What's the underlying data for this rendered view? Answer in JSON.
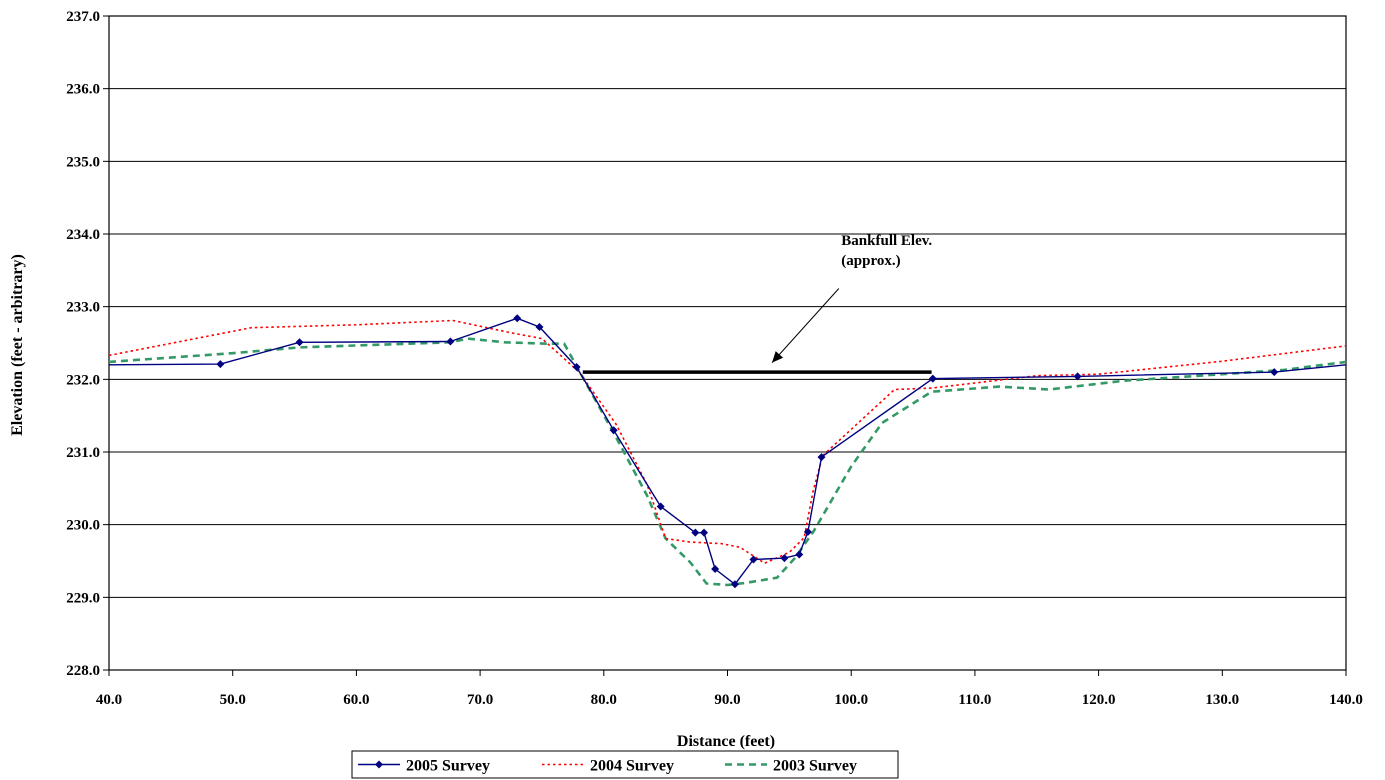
{
  "chart_data": {
    "type": "line",
    "title": "",
    "xlabel": "Distance (feet)",
    "ylabel": "Elevation (feet - arbitrary)",
    "xlim": [
      40,
      140
    ],
    "ylim": [
      228,
      237
    ],
    "xticks": [
      "40.0",
      "50.0",
      "60.0",
      "70.0",
      "80.0",
      "90.0",
      "100.0",
      "110.0",
      "120.0",
      "130.0",
      "140.0"
    ],
    "yticks": [
      "228.0",
      "229.0",
      "230.0",
      "231.0",
      "232.0",
      "233.0",
      "234.0",
      "235.0",
      "236.0",
      "237.0"
    ],
    "grid": "horizontal",
    "legend_position": "bottom",
    "series": [
      {
        "name": "2005 Survey",
        "color": "#000080",
        "style": "solid-diamond",
        "points": [
          [
            40,
            232.2
          ],
          [
            49,
            232.21
          ],
          [
            55.4,
            232.51
          ],
          [
            67.6,
            232.52
          ],
          [
            73,
            232.84
          ],
          [
            74.8,
            232.72
          ],
          [
            77.8,
            232.17
          ],
          [
            80.8,
            231.3
          ],
          [
            84.6,
            230.25
          ],
          [
            87.4,
            229.89
          ],
          [
            88.1,
            229.89
          ],
          [
            89,
            229.39
          ],
          [
            90.6,
            229.18
          ],
          [
            92.1,
            229.52
          ],
          [
            94.6,
            229.54
          ],
          [
            95.8,
            229.59
          ],
          [
            96.5,
            229.9
          ],
          [
            97.6,
            230.93
          ],
          [
            106.6,
            232.01
          ],
          [
            118.3,
            232.04
          ],
          [
            134.2,
            232.1
          ],
          [
            140,
            232.2
          ]
        ]
      },
      {
        "name": "2004 Survey",
        "color": "#ff0000",
        "style": "dotted",
        "points": [
          [
            40,
            232.33
          ],
          [
            51.5,
            232.71
          ],
          [
            60,
            232.75
          ],
          [
            67.8,
            232.81
          ],
          [
            72.5,
            232.64
          ],
          [
            75,
            232.56
          ],
          [
            78,
            232.1
          ],
          [
            81,
            231.38
          ],
          [
            83.5,
            230.55
          ],
          [
            85,
            229.81
          ],
          [
            87,
            229.76
          ],
          [
            89.5,
            229.74
          ],
          [
            91,
            229.69
          ],
          [
            93,
            229.47
          ],
          [
            95,
            229.62
          ],
          [
            96.2,
            229.82
          ],
          [
            96.9,
            230.45
          ],
          [
            97.7,
            230.95
          ],
          [
            103.5,
            231.86
          ],
          [
            106.5,
            231.88
          ],
          [
            115,
            232.05
          ],
          [
            120,
            232.07
          ],
          [
            130,
            232.25
          ],
          [
            140,
            232.46
          ]
        ]
      },
      {
        "name": "2003 Survey",
        "color": "#339966",
        "style": "dashed",
        "points": [
          [
            40,
            232.24
          ],
          [
            50,
            232.36
          ],
          [
            55.4,
            232.44
          ],
          [
            67.6,
            232.51
          ],
          [
            69,
            232.56
          ],
          [
            72,
            232.51
          ],
          [
            75.5,
            232.49
          ],
          [
            76.8,
            232.49
          ],
          [
            78.2,
            232.06
          ],
          [
            81,
            231.2
          ],
          [
            83.5,
            230.4
          ],
          [
            85,
            229.81
          ],
          [
            87,
            229.48
          ],
          [
            88.3,
            229.19
          ],
          [
            90,
            229.17
          ],
          [
            91.5,
            229.2
          ],
          [
            94,
            229.27
          ],
          [
            95.5,
            229.55
          ],
          [
            97,
            229.92
          ],
          [
            100,
            230.8
          ],
          [
            102.5,
            231.4
          ],
          [
            106.5,
            231.83
          ],
          [
            112,
            231.9
          ],
          [
            116,
            231.86
          ],
          [
            122,
            231.98
          ],
          [
            130,
            232.07
          ],
          [
            135,
            232.13
          ],
          [
            140,
            232.24
          ]
        ]
      }
    ],
    "annotations": [
      {
        "type": "hline",
        "x_range": [
          78.3,
          106.5
        ],
        "y": 232.1,
        "color": "#000000",
        "label_lines": [
          "Bankfull Elev.",
          "(approx.)"
        ],
        "label_at": [
          99.2,
          233.85
        ],
        "arrow_from": [
          99,
          233.25
        ],
        "arrow_to": [
          93.6,
          232.23
        ]
      }
    ]
  }
}
